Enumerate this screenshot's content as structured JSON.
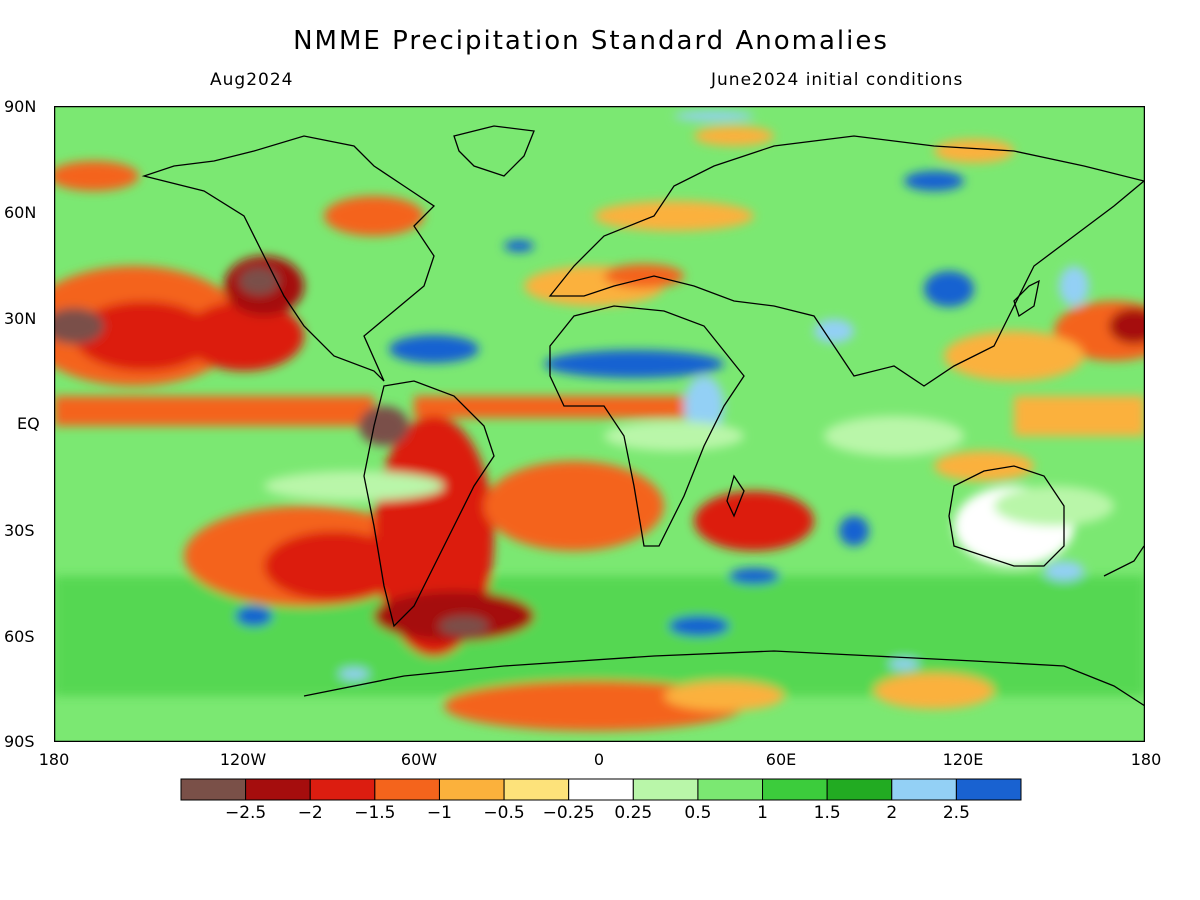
{
  "header": {
    "title": "NMME Precipitation Standard Anomalies",
    "valid_month": "Aug2024",
    "initial_conditions": "June2024 initial conditions"
  },
  "axes": {
    "lat_labels": [
      "90N",
      "60N",
      "30N",
      "EQ",
      "30S",
      "60S",
      "90S"
    ],
    "lon_labels": [
      "180",
      "120W",
      "60W",
      "0",
      "60E",
      "120E",
      "180"
    ]
  },
  "legend": {
    "colors": [
      "#7a5048",
      "#a50d0d",
      "#dc1d10",
      "#f4641c",
      "#fbb13c",
      "#fde27a",
      "#ffffff",
      "#b9f6a9",
      "#7be872",
      "#3ccc3c",
      "#22ab22",
      "#93d0f5",
      "#1962d1"
    ],
    "labels": [
      "-2.5",
      "-2",
      "-1.5",
      "-1",
      "-0.5",
      "-0.25",
      "0.25",
      "0.5",
      "1",
      "1.5",
      "2",
      "2.5"
    ]
  }
}
